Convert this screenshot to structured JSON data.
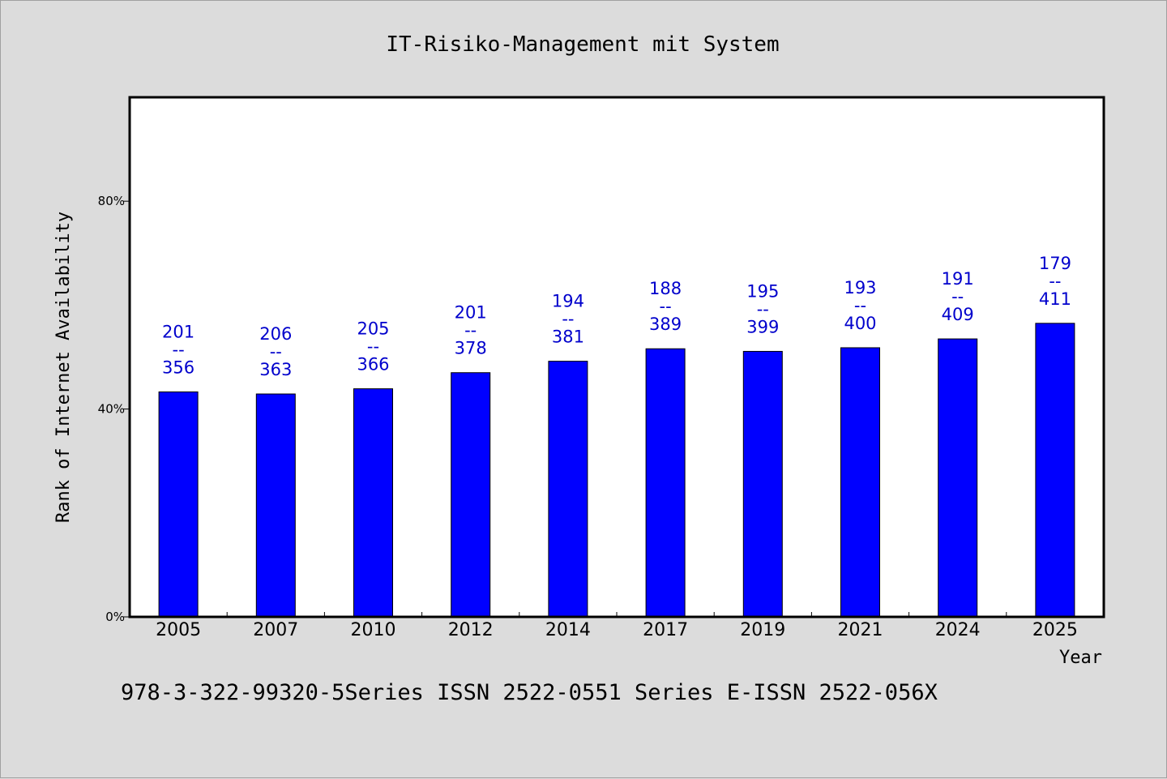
{
  "chart_data": {
    "type": "bar",
    "title": "IT-Risiko-Management mit System",
    "xlabel": "Year",
    "ylabel": "Rank of Internet Availability",
    "categories": [
      "2005",
      "2007",
      "2010",
      "2012",
      "2014",
      "2017",
      "2019",
      "2021",
      "2024",
      "2025"
    ],
    "values": [
      43.3,
      42.9,
      43.9,
      47.0,
      49.2,
      51.6,
      51.1,
      51.8,
      53.5,
      56.5
    ],
    "bar_labels": [
      {
        "top": "201",
        "sep": "--",
        "bottom": "356"
      },
      {
        "top": "206",
        "sep": "--",
        "bottom": "363"
      },
      {
        "top": "205",
        "sep": "--",
        "bottom": "366"
      },
      {
        "top": "201",
        "sep": "--",
        "bottom": "378"
      },
      {
        "top": "194",
        "sep": "--",
        "bottom": "381"
      },
      {
        "top": "188",
        "sep": "--",
        "bottom": "389"
      },
      {
        "top": "195",
        "sep": "--",
        "bottom": "399"
      },
      {
        "top": "193",
        "sep": "--",
        "bottom": "400"
      },
      {
        "top": "191",
        "sep": "--",
        "bottom": "409"
      },
      {
        "top": "179",
        "sep": "--",
        "bottom": "411"
      }
    ],
    "ylim": [
      0,
      100
    ],
    "yticks": [
      0,
      40,
      80
    ],
    "ytick_labels": [
      "0%",
      "40%",
      "80%"
    ],
    "grid": false,
    "bar_color": "#0000ff",
    "label_color": "#0000cc"
  },
  "footer": {
    "text": "978-3-322-99320-5Series ISSN 2522-0551 Series E-ISSN 2522-056X"
  }
}
